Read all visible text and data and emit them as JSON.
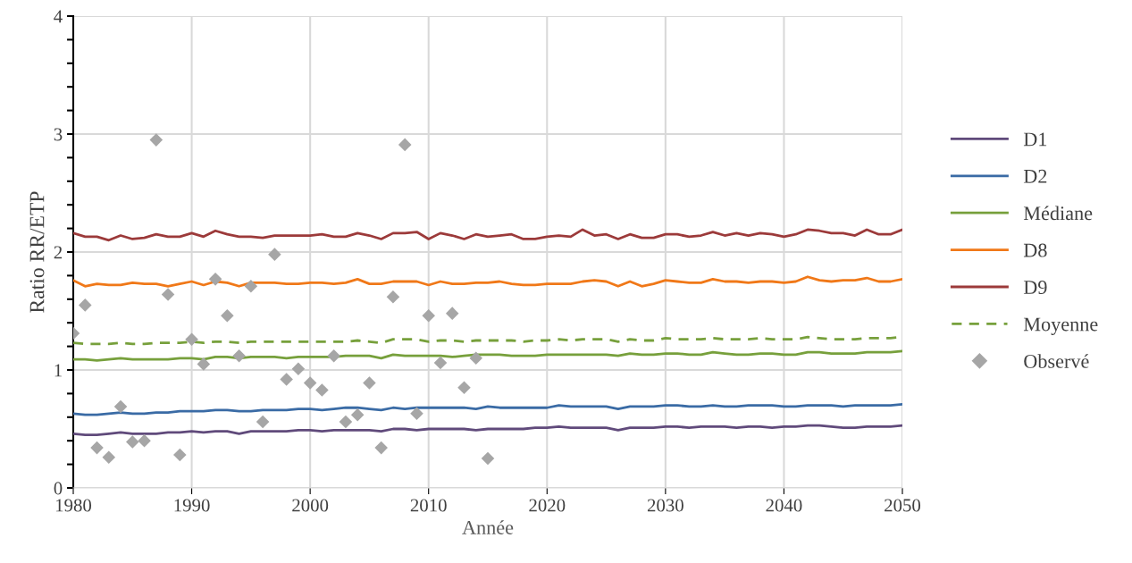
{
  "chart_data": {
    "type": "line",
    "xlabel": "Année",
    "ylabel": "Ratio RR/ETP",
    "xlim": [
      1980,
      2050
    ],
    "xticks": [
      1980,
      1990,
      2000,
      2010,
      2020,
      2030,
      2040,
      2050
    ],
    "ylim": [
      0,
      4
    ],
    "yticks": [
      0,
      1,
      2,
      3,
      4
    ],
    "grid": true,
    "legend": "right",
    "marker": "none",
    "x": [
      1980,
      1981,
      1982,
      1983,
      1984,
      1985,
      1986,
      1987,
      1988,
      1989,
      1990,
      1991,
      1992,
      1993,
      1994,
      1995,
      1996,
      1997,
      1998,
      1999,
      2000,
      2001,
      2002,
      2003,
      2004,
      2005,
      2006,
      2007,
      2008,
      2009,
      2010,
      2011,
      2012,
      2013,
      2014,
      2015,
      2016,
      2017,
      2018,
      2019,
      2020,
      2021,
      2022,
      2023,
      2024,
      2025,
      2026,
      2027,
      2028,
      2029,
      2030,
      2031,
      2032,
      2033,
      2034,
      2035,
      2036,
      2037,
      2038,
      2039,
      2040,
      2041,
      2042,
      2043,
      2044,
      2045,
      2046,
      2047,
      2048,
      2049,
      2050
    ],
    "series": [
      {
        "name": "D1",
        "color": "#604a7b",
        "values": [
          0.46,
          0.45,
          0.45,
          0.46,
          0.47,
          0.46,
          0.46,
          0.46,
          0.47,
          0.47,
          0.48,
          0.47,
          0.48,
          0.48,
          0.46,
          0.48,
          0.48,
          0.48,
          0.48,
          0.49,
          0.49,
          0.48,
          0.49,
          0.49,
          0.49,
          0.49,
          0.48,
          0.5,
          0.5,
          0.49,
          0.5,
          0.5,
          0.5,
          0.5,
          0.49,
          0.5,
          0.5,
          0.5,
          0.5,
          0.51,
          0.51,
          0.52,
          0.51,
          0.51,
          0.51,
          0.51,
          0.49,
          0.51,
          0.51,
          0.51,
          0.52,
          0.52,
          0.51,
          0.52,
          0.52,
          0.52,
          0.51,
          0.52,
          0.52,
          0.51,
          0.52,
          0.52,
          0.53,
          0.53,
          0.52,
          0.51,
          0.51,
          0.52,
          0.52,
          0.52,
          0.53
        ]
      },
      {
        "name": "D2",
        "color": "#3a6ba5",
        "values": [
          0.63,
          0.62,
          0.62,
          0.63,
          0.64,
          0.63,
          0.63,
          0.64,
          0.64,
          0.65,
          0.65,
          0.65,
          0.66,
          0.66,
          0.65,
          0.65,
          0.66,
          0.66,
          0.66,
          0.67,
          0.67,
          0.66,
          0.67,
          0.68,
          0.68,
          0.67,
          0.66,
          0.68,
          0.67,
          0.68,
          0.68,
          0.68,
          0.68,
          0.68,
          0.67,
          0.69,
          0.68,
          0.68,
          0.68,
          0.68,
          0.68,
          0.7,
          0.69,
          0.69,
          0.69,
          0.69,
          0.67,
          0.69,
          0.69,
          0.69,
          0.7,
          0.7,
          0.69,
          0.69,
          0.7,
          0.69,
          0.69,
          0.7,
          0.7,
          0.7,
          0.69,
          0.69,
          0.7,
          0.7,
          0.7,
          0.69,
          0.7,
          0.7,
          0.7,
          0.7,
          0.71
        ]
      },
      {
        "name": "Médiane",
        "color": "#77a03c",
        "values": [
          1.09,
          1.09,
          1.08,
          1.09,
          1.1,
          1.09,
          1.09,
          1.09,
          1.09,
          1.1,
          1.1,
          1.09,
          1.11,
          1.11,
          1.1,
          1.11,
          1.11,
          1.11,
          1.1,
          1.11,
          1.11,
          1.11,
          1.11,
          1.12,
          1.12,
          1.12,
          1.1,
          1.13,
          1.12,
          1.12,
          1.12,
          1.12,
          1.11,
          1.12,
          1.13,
          1.13,
          1.13,
          1.12,
          1.12,
          1.12,
          1.13,
          1.13,
          1.13,
          1.13,
          1.13,
          1.13,
          1.12,
          1.14,
          1.13,
          1.13,
          1.14,
          1.14,
          1.13,
          1.13,
          1.15,
          1.14,
          1.13,
          1.13,
          1.14,
          1.14,
          1.13,
          1.13,
          1.15,
          1.15,
          1.14,
          1.14,
          1.14,
          1.15,
          1.15,
          1.15,
          1.16
        ]
      },
      {
        "name": "D8",
        "color": "#f07818",
        "values": [
          1.76,
          1.71,
          1.73,
          1.72,
          1.72,
          1.74,
          1.73,
          1.73,
          1.71,
          1.73,
          1.75,
          1.72,
          1.75,
          1.74,
          1.71,
          1.74,
          1.74,
          1.74,
          1.73,
          1.73,
          1.74,
          1.74,
          1.73,
          1.74,
          1.77,
          1.73,
          1.73,
          1.75,
          1.75,
          1.75,
          1.72,
          1.75,
          1.73,
          1.73,
          1.74,
          1.74,
          1.75,
          1.73,
          1.72,
          1.72,
          1.73,
          1.73,
          1.73,
          1.75,
          1.76,
          1.75,
          1.71,
          1.75,
          1.71,
          1.73,
          1.76,
          1.75,
          1.74,
          1.74,
          1.77,
          1.75,
          1.75,
          1.74,
          1.75,
          1.75,
          1.74,
          1.75,
          1.79,
          1.76,
          1.75,
          1.76,
          1.76,
          1.78,
          1.75,
          1.75,
          1.77
        ]
      },
      {
        "name": "D9",
        "color": "#9c3a3a",
        "values": [
          2.16,
          2.13,
          2.13,
          2.1,
          2.14,
          2.11,
          2.12,
          2.15,
          2.13,
          2.13,
          2.16,
          2.13,
          2.18,
          2.15,
          2.13,
          2.13,
          2.12,
          2.14,
          2.14,
          2.14,
          2.14,
          2.15,
          2.13,
          2.13,
          2.16,
          2.14,
          2.11,
          2.16,
          2.16,
          2.17,
          2.11,
          2.16,
          2.14,
          2.11,
          2.15,
          2.13,
          2.14,
          2.15,
          2.11,
          2.11,
          2.13,
          2.14,
          2.13,
          2.19,
          2.14,
          2.15,
          2.11,
          2.15,
          2.12,
          2.12,
          2.15,
          2.15,
          2.13,
          2.14,
          2.17,
          2.14,
          2.16,
          2.14,
          2.16,
          2.15,
          2.13,
          2.15,
          2.19,
          2.18,
          2.16,
          2.16,
          2.14,
          2.19,
          2.15,
          2.15,
          2.19
        ]
      },
      {
        "name": "Moyenne",
        "color": "#77a03c",
        "line_style": "dashed",
        "values": [
          1.23,
          1.22,
          1.22,
          1.22,
          1.23,
          1.22,
          1.22,
          1.23,
          1.23,
          1.23,
          1.24,
          1.23,
          1.24,
          1.24,
          1.23,
          1.24,
          1.24,
          1.24,
          1.24,
          1.24,
          1.24,
          1.24,
          1.24,
          1.24,
          1.25,
          1.24,
          1.23,
          1.26,
          1.26,
          1.26,
          1.24,
          1.25,
          1.25,
          1.24,
          1.25,
          1.25,
          1.25,
          1.25,
          1.24,
          1.25,
          1.25,
          1.26,
          1.25,
          1.26,
          1.26,
          1.26,
          1.24,
          1.26,
          1.25,
          1.25,
          1.27,
          1.26,
          1.26,
          1.26,
          1.27,
          1.26,
          1.26,
          1.26,
          1.27,
          1.26,
          1.26,
          1.26,
          1.28,
          1.27,
          1.26,
          1.26,
          1.26,
          1.27,
          1.27,
          1.27,
          1.28
        ]
      },
      {
        "name": "Observé",
        "type": "scatter",
        "marker": "diamond",
        "color": "#a6a6a6",
        "x": [
          1980,
          1981,
          1982,
          1983,
          1984,
          1985,
          1986,
          1987,
          1988,
          1989,
          1990,
          1991,
          1992,
          1993,
          1994,
          1995,
          1996,
          1997,
          1998,
          1999,
          2000,
          2001,
          2002,
          2003,
          2004,
          2005,
          2006,
          2007,
          2008,
          2009,
          2010,
          2011,
          2012,
          2013,
          2014,
          2015
        ],
        "values": [
          1.31,
          1.55,
          0.34,
          0.26,
          0.69,
          0.39,
          0.4,
          2.95,
          1.64,
          0.28,
          1.26,
          1.05,
          1.77,
          1.46,
          1.12,
          1.71,
          0.56,
          1.98,
          0.92,
          1.01,
          0.89,
          0.83,
          1.12,
          0.56,
          0.62,
          0.89,
          0.34,
          1.62,
          2.91,
          0.63,
          1.46,
          1.06,
          1.48,
          0.85,
          1.1,
          0.25
        ]
      }
    ]
  }
}
